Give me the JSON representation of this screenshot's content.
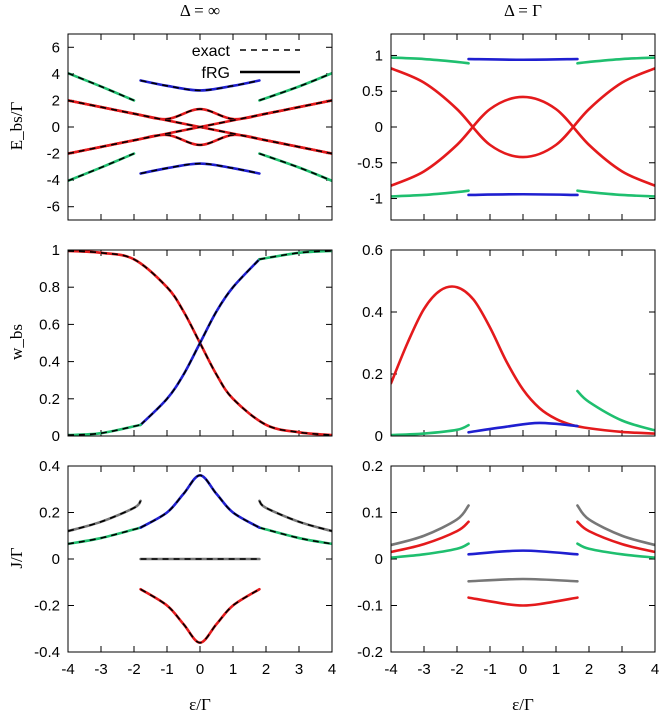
{
  "column_titles": [
    "Δ = ∞",
    "Δ = Γ"
  ],
  "row_ylabels": [
    "E_bs/Γ",
    "w_bs",
    "J/Γ"
  ],
  "xlabel": "ε/Γ",
  "legend": {
    "exact": "exact",
    "frg": "fRG"
  },
  "colors": {
    "red": "#e41a1c",
    "blue": "#1f1fd0",
    "green": "#1fbf6f",
    "gray": "#777777"
  },
  "chart_data": [
    {
      "type": "line",
      "panel": "E-inf",
      "xlim": [
        -4,
        4
      ],
      "ylim": [
        -7,
        7
      ],
      "xticks": [
        -4,
        -3,
        -2,
        -1,
        0,
        1,
        2,
        3,
        4
      ],
      "yticks": [
        -6,
        -4,
        -2,
        0,
        2,
        4,
        6
      ],
      "legend_entries": [
        "exact",
        "fRG"
      ],
      "series": [
        {
          "color": "red",
          "x": [
            -4,
            -3,
            -2,
            -1,
            0,
            1,
            2,
            3,
            4
          ],
          "y": [
            2,
            1.5,
            1.0,
            0.6,
            1.35,
            0.6,
            1.0,
            1.5,
            2
          ]
        },
        {
          "color": "red",
          "x": [
            -4,
            -3,
            -2,
            -1,
            0,
            1,
            2,
            3,
            4
          ],
          "y": [
            -2,
            -1.5,
            -1.0,
            -0.6,
            -1.35,
            -0.6,
            -1.0,
            -1.5,
            -2
          ]
        },
        {
          "color": "red",
          "x": [
            -4,
            -2,
            0,
            2,
            4
          ],
          "y": [
            2,
            1,
            0,
            -1,
            -2
          ]
        },
        {
          "color": "red",
          "x": [
            -4,
            -2,
            0,
            2,
            4
          ],
          "y": [
            -2,
            -1,
            0,
            1,
            2
          ]
        },
        {
          "color": "green",
          "x": [
            -4,
            -3,
            -2
          ],
          "y": [
            4.05,
            3.05,
            2.0
          ]
        },
        {
          "color": "green",
          "x": [
            -4,
            -3,
            -2
          ],
          "y": [
            -4.05,
            -3.05,
            -2.0
          ]
        },
        {
          "color": "green",
          "x": [
            1.8,
            3,
            4
          ],
          "y": [
            -2.0,
            -3.05,
            -4.05
          ]
        },
        {
          "color": "green",
          "x": [
            1.8,
            3,
            4
          ],
          "y": [
            2.0,
            3.05,
            4.05
          ]
        },
        {
          "color": "blue",
          "x": [
            -1.8,
            -1,
            0,
            1,
            1.8
          ],
          "y": [
            3.5,
            3.1,
            2.75,
            3.1,
            3.5
          ]
        },
        {
          "color": "blue",
          "x": [
            -1.8,
            -1,
            0,
            1,
            1.8
          ],
          "y": [
            -3.5,
            -3.1,
            -2.75,
            -3.1,
            -3.5
          ]
        }
      ]
    },
    {
      "type": "line",
      "panel": "E-gamma",
      "xlim": [
        -4,
        4
      ],
      "ylim": [
        -1.3,
        1.3
      ],
      "xticks": [
        -4,
        -3,
        -2,
        -1,
        0,
        1,
        2,
        3,
        4
      ],
      "yticks": [
        -1,
        -0.5,
        0,
        0.5,
        1
      ],
      "series": [
        {
          "color": "red",
          "x": [
            -4,
            -3,
            -2,
            -1,
            0,
            1,
            2,
            3,
            4
          ],
          "y": [
            0.82,
            0.62,
            0.25,
            -0.25,
            -0.42,
            -0.25,
            0.25,
            0.62,
            0.82
          ]
        },
        {
          "color": "red",
          "x": [
            -4,
            -3,
            -2,
            -1,
            0,
            1,
            2,
            3,
            4
          ],
          "y": [
            -0.82,
            -0.62,
            -0.25,
            0.25,
            0.42,
            0.25,
            -0.25,
            -0.62,
            -0.82
          ]
        },
        {
          "color": "green",
          "x": [
            -4,
            -3,
            -2,
            -1.65
          ],
          "y": [
            0.97,
            0.95,
            0.91,
            0.89
          ]
        },
        {
          "color": "green",
          "x": [
            -4,
            -3,
            -2,
            -1.65
          ],
          "y": [
            -0.97,
            -0.95,
            -0.91,
            -0.89
          ]
        },
        {
          "color": "green",
          "x": [
            1.65,
            2,
            3,
            4
          ],
          "y": [
            0.89,
            0.91,
            0.95,
            0.97
          ]
        },
        {
          "color": "green",
          "x": [
            1.65,
            2,
            3,
            4
          ],
          "y": [
            -0.89,
            -0.91,
            -0.95,
            -0.97
          ]
        },
        {
          "color": "blue",
          "x": [
            -1.65,
            0,
            1.65
          ],
          "y": [
            0.95,
            0.94,
            0.95
          ]
        },
        {
          "color": "blue",
          "x": [
            -1.65,
            0,
            1.65
          ],
          "y": [
            -0.95,
            -0.94,
            -0.95
          ]
        }
      ]
    },
    {
      "type": "line",
      "panel": "w-inf",
      "xlim": [
        -4,
        4
      ],
      "ylim": [
        0,
        1
      ],
      "xticks": [
        -4,
        -3,
        -2,
        -1,
        0,
        1,
        2,
        3,
        4
      ],
      "yticks": [
        0,
        0.2,
        0.4,
        0.6,
        0.8,
        1
      ],
      "series": [
        {
          "color": "red",
          "x": [
            -4,
            -3,
            -2,
            -1,
            -0.5,
            0,
            0.5,
            1,
            2,
            3,
            4
          ],
          "y": [
            0.995,
            0.985,
            0.95,
            0.8,
            0.67,
            0.5,
            0.33,
            0.2,
            0.06,
            0.02,
            0.005
          ]
        },
        {
          "color": "blue",
          "x": [
            -1.8,
            -1,
            -0.5,
            0,
            0.5,
            1,
            1.8
          ],
          "y": [
            0.06,
            0.2,
            0.33,
            0.5,
            0.67,
            0.8,
            0.95
          ]
        },
        {
          "color": "green",
          "x": [
            -4,
            -3,
            -1.8
          ],
          "y": [
            0.005,
            0.015,
            0.06
          ]
        },
        {
          "color": "green",
          "x": [
            1.8,
            3,
            4
          ],
          "y": [
            0.95,
            0.985,
            0.995
          ]
        }
      ]
    },
    {
      "type": "line",
      "panel": "w-gamma",
      "xlim": [
        -4,
        4
      ],
      "ylim": [
        0,
        0.6
      ],
      "xticks": [
        -4,
        -3,
        -2,
        -1,
        0,
        1,
        2,
        3,
        4
      ],
      "yticks": [
        0,
        0.2,
        0.4,
        0.6
      ],
      "series": [
        {
          "color": "red",
          "x": [
            -4,
            -3.5,
            -3,
            -2.5,
            -2,
            -1.5,
            -1,
            -0.5,
            0,
            0.5,
            1,
            1.5,
            2,
            3,
            4
          ],
          "y": [
            0.17,
            0.3,
            0.41,
            0.47,
            0.48,
            0.44,
            0.35,
            0.24,
            0.15,
            0.09,
            0.055,
            0.035,
            0.025,
            0.013,
            0.008
          ]
        },
        {
          "color": "green",
          "x": [
            -4,
            -3,
            -2,
            -1.65
          ],
          "y": [
            0.003,
            0.008,
            0.02,
            0.035
          ]
        },
        {
          "color": "green",
          "x": [
            1.65,
            2,
            3,
            4
          ],
          "y": [
            0.145,
            0.11,
            0.05,
            0.018
          ]
        },
        {
          "color": "blue",
          "x": [
            -1.65,
            -0.5,
            0.5,
            1.65
          ],
          "y": [
            0.012,
            0.03,
            0.042,
            0.032
          ]
        }
      ]
    },
    {
      "type": "line",
      "panel": "J-inf",
      "xlim": [
        -4,
        4
      ],
      "ylim": [
        -0.4,
        0.4
      ],
      "xticks": [
        -4,
        -3,
        -2,
        -1,
        0,
        1,
        2,
        3,
        4
      ],
      "yticks": [
        -0.4,
        -0.2,
        0,
        0.2,
        0.4
      ],
      "series": [
        {
          "color": "gray",
          "x": [
            -4,
            -3,
            -2,
            -1.8
          ],
          "y": [
            0.12,
            0.16,
            0.22,
            0.25
          ]
        },
        {
          "color": "gray",
          "x": [
            1.8,
            2,
            3,
            4
          ],
          "y": [
            0.25,
            0.22,
            0.16,
            0.12
          ]
        },
        {
          "color": "green",
          "x": [
            -4,
            -3,
            -1.8
          ],
          "y": [
            0.065,
            0.09,
            0.135
          ]
        },
        {
          "color": "green",
          "x": [
            1.8,
            3,
            4
          ],
          "y": [
            0.135,
            0.09,
            0.065
          ]
        },
        {
          "color": "blue",
          "x": [
            -1.8,
            -1,
            -0.5,
            0,
            0.5,
            1,
            1.8
          ],
          "y": [
            0.135,
            0.2,
            0.28,
            0.36,
            0.28,
            0.2,
            0.135
          ]
        },
        {
          "color": "gray",
          "x": [
            -1.8,
            1.8
          ],
          "y": [
            0,
            0
          ]
        },
        {
          "color": "red",
          "x": [
            -1.8,
            -1,
            -0.5,
            0,
            0.5,
            1,
            1.8
          ],
          "y": [
            -0.13,
            -0.2,
            -0.28,
            -0.36,
            -0.28,
            -0.2,
            -0.13
          ]
        }
      ]
    },
    {
      "type": "line",
      "panel": "J-gamma",
      "xlim": [
        -4,
        4
      ],
      "ylim": [
        -0.2,
        0.2
      ],
      "xticks": [
        -4,
        -3,
        -2,
        -1,
        0,
        1,
        2,
        3,
        4
      ],
      "yticks": [
        -0.2,
        -0.1,
        0,
        0.1,
        0.2
      ],
      "series": [
        {
          "color": "gray",
          "x": [
            -4,
            -3,
            -2,
            -1.65
          ],
          "y": [
            0.03,
            0.05,
            0.085,
            0.115
          ]
        },
        {
          "color": "gray",
          "x": [
            1.65,
            2,
            3,
            4
          ],
          "y": [
            0.115,
            0.085,
            0.05,
            0.03
          ]
        },
        {
          "color": "red",
          "x": [
            -4,
            -3,
            -2,
            -1.65
          ],
          "y": [
            0.015,
            0.032,
            0.06,
            0.08
          ]
        },
        {
          "color": "red",
          "x": [
            1.65,
            2,
            3,
            4
          ],
          "y": [
            0.08,
            0.06,
            0.032,
            0.015
          ]
        },
        {
          "color": "green",
          "x": [
            -4,
            -3,
            -2,
            -1.65
          ],
          "y": [
            0.003,
            0.01,
            0.022,
            0.033
          ]
        },
        {
          "color": "green",
          "x": [
            1.65,
            2,
            3,
            4
          ],
          "y": [
            0.033,
            0.022,
            0.01,
            0.003
          ]
        },
        {
          "color": "blue",
          "x": [
            -1.65,
            0,
            1.65
          ],
          "y": [
            0.01,
            0.018,
            0.01
          ]
        },
        {
          "color": "gray",
          "x": [
            -1.65,
            0,
            1.65
          ],
          "y": [
            -0.048,
            -0.043,
            -0.048
          ]
        },
        {
          "color": "red",
          "x": [
            -1.65,
            -0.5,
            0,
            0.5,
            1.65
          ],
          "y": [
            -0.083,
            -0.097,
            -0.1,
            -0.097,
            -0.083
          ]
        }
      ]
    }
  ]
}
